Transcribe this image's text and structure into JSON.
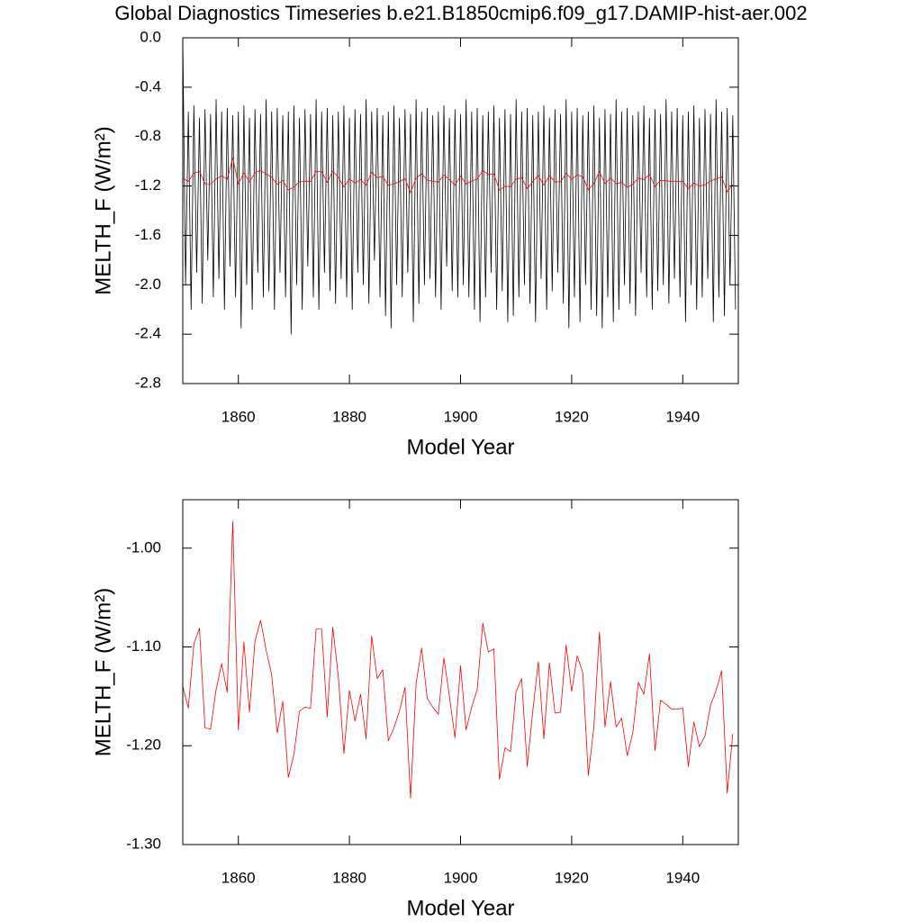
{
  "chart_data": [
    {
      "type": "line",
      "title": "Global Diagnostics Timeseries b.e21.B1850cmip6.f09_g17.DAMIP-hist-aer.002",
      "xlabel": "Model Year",
      "ylabel": "MELTH_F (W/m²)",
      "xlim": [
        1850,
        1950
      ],
      "xticks": [
        1860,
        1880,
        1900,
        1920,
        1940
      ],
      "ylim": [
        -2.8,
        0.0
      ],
      "yticks": [
        {
          "value": 0.0,
          "label": "0.0"
        },
        -0.4,
        -0.8,
        -1.2,
        -1.6,
        {
          "value": -2.0,
          "label": "-2.0"
        },
        -2.4,
        -2.8
      ],
      "series": [
        {
          "color": "#000000",
          "x": [
            1850,
            1850.5,
            1851,
            1851.5,
            1852,
            1852.5,
            1853,
            1853.5,
            1854,
            1854.5,
            1855,
            1855.5,
            1856,
            1856.5,
            1857,
            1857.5,
            1858,
            1858.5,
            1859,
            1859.5,
            1860,
            1860.5,
            1861,
            1861.5,
            1862,
            1862.5,
            1863,
            1863.5,
            1864,
            1864.5,
            1865,
            1865.5,
            1866,
            1866.5,
            1867,
            1867.5,
            1868,
            1868.5,
            1869,
            1869.5,
            1870,
            1870.5,
            1871,
            1871.5,
            1872,
            1872.5,
            1873,
            1873.5,
            1874,
            1874.5,
            1875,
            1875.5,
            1876,
            1876.5,
            1877,
            1877.5,
            1878,
            1878.5,
            1879,
            1879.5,
            1880,
            1880.5,
            1881,
            1881.5,
            1882,
            1882.5,
            1883,
            1883.5,
            1884,
            1884.5,
            1885,
            1885.5,
            1886,
            1886.5,
            1887,
            1887.5,
            1888,
            1888.5,
            1889,
            1889.5,
            1890,
            1890.5,
            1891,
            1891.5,
            1892,
            1892.5,
            1893,
            1893.5,
            1894,
            1894.5,
            1895,
            1895.5,
            1896,
            1896.5,
            1897,
            1897.5,
            1898,
            1898.5,
            1899,
            1899.5,
            1900,
            1900.5,
            1901,
            1901.5,
            1902,
            1902.5,
            1903,
            1903.5,
            1904,
            1904.5,
            1905,
            1905.5,
            1906,
            1906.5,
            1907,
            1907.5,
            1908,
            1908.5,
            1909,
            1909.5,
            1910,
            1910.5,
            1911,
            1911.5,
            1912,
            1912.5,
            1913,
            1913.5,
            1914,
            1914.5,
            1915,
            1915.5,
            1916,
            1916.5,
            1917,
            1917.5,
            1918,
            1918.5,
            1919,
            1919.5,
            1920,
            1920.5,
            1921,
            1921.5,
            1922,
            1922.5,
            1923,
            1923.5,
            1924,
            1924.5,
            1925,
            1925.5,
            1926,
            1926.5,
            1927,
            1927.5,
            1928,
            1928.5,
            1929,
            1929.5,
            1930,
            1930.5,
            1931,
            1931.5,
            1932,
            1932.5,
            1933,
            1933.5,
            1934,
            1934.5,
            1935,
            1935.5,
            1936,
            1936.5,
            1937,
            1937.5,
            1938,
            1938.5,
            1939,
            1939.5,
            1940,
            1940.5,
            1941,
            1941.5,
            1942,
            1942.5,
            1943,
            1943.5,
            1944,
            1944.5,
            1945,
            1945.5,
            1946,
            1946.5,
            1947,
            1947.5,
            1948,
            1948.5,
            1949,
            1949.5
          ],
          "values": [
            0.0,
            -2.0,
            -0.6,
            -2.2,
            -0.55,
            -1.9,
            -0.65,
            -2.15,
            -0.58,
            -1.8,
            -0.62,
            -2.1,
            -0.5,
            -1.95,
            -0.6,
            -2.2,
            -0.57,
            -1.85,
            -0.63,
            -2.1,
            -0.6,
            -2.35,
            -0.55,
            -2.0,
            -0.65,
            -2.2,
            -0.58,
            -1.9,
            -0.62,
            -2.1,
            -0.5,
            -2.05,
            -0.6,
            -2.2,
            -0.57,
            -1.9,
            -0.63,
            -2.1,
            -0.6,
            -2.4,
            -0.55,
            -2.0,
            -0.65,
            -2.2,
            -0.58,
            -1.85,
            -0.62,
            -2.1,
            -0.5,
            -2.2,
            -0.6,
            -1.9,
            -0.57,
            -2.05,
            -0.63,
            -2.15,
            -0.6,
            -1.95,
            -0.55,
            -2.1,
            -0.65,
            -2.2,
            -0.58,
            -1.9,
            -0.62,
            -2.0,
            -0.5,
            -2.15,
            -0.6,
            -1.8,
            -0.57,
            -2.1,
            -0.63,
            -2.25,
            -0.6,
            -2.35,
            -0.55,
            -2.0,
            -0.65,
            -2.1,
            -0.58,
            -1.9,
            -0.62,
            -2.3,
            -0.5,
            -2.15,
            -0.6,
            -2.0,
            -0.57,
            -1.95,
            -0.63,
            -2.1,
            -0.6,
            -2.2,
            -0.55,
            -1.85,
            -0.65,
            -2.05,
            -0.58,
            -2.1,
            -0.62,
            -2.0,
            -0.5,
            -2.1,
            -0.6,
            -2.2,
            -0.57,
            -2.3,
            -0.63,
            -2.1,
            -0.6,
            -1.9,
            -0.55,
            -2.2,
            -0.65,
            -2.05,
            -0.58,
            -2.3,
            -0.62,
            -2.25,
            -0.5,
            -2.1,
            -0.6,
            -2.0,
            -0.57,
            -2.15,
            -0.63,
            -2.3,
            -0.6,
            -1.95,
            -0.55,
            -2.2,
            -0.65,
            -2.05,
            -0.58,
            -1.9,
            -0.62,
            -2.15,
            -0.5,
            -2.35,
            -0.6,
            -2.1,
            -0.57,
            -2.3,
            -0.63,
            -2.0,
            -0.6,
            -2.2,
            -0.55,
            -2.25,
            -0.65,
            -2.35,
            -0.58,
            -2.1,
            -0.62,
            -2.3,
            -0.5,
            -2.2,
            -0.6,
            -2.0,
            -0.57,
            -2.15,
            -0.63,
            -2.25,
            -0.6,
            -1.9,
            -0.55,
            -2.1,
            -0.65,
            -2.2,
            -0.58,
            -2.05,
            -0.62,
            -2.0,
            -0.5,
            -2.15,
            -0.6,
            -1.95,
            -0.57,
            -2.1,
            -0.63,
            -2.3,
            -0.6,
            -2.0,
            -0.55,
            -2.2,
            -0.65,
            -2.1,
            -0.58,
            -1.95,
            -0.62,
            -2.3,
            -0.5,
            -2.1,
            -0.6,
            -2.25,
            -0.57,
            -2.0,
            -0.63,
            -2.2
          ]
        },
        {
          "color": "#ff0000",
          "x": [
            1850,
            1851,
            1852,
            1853,
            1854,
            1855,
            1856,
            1857,
            1858,
            1859,
            1860,
            1861,
            1862,
            1863,
            1864,
            1865,
            1866,
            1867,
            1868,
            1869,
            1870,
            1871,
            1872,
            1873,
            1874,
            1875,
            1876,
            1877,
            1878,
            1879,
            1880,
            1881,
            1882,
            1883,
            1884,
            1885,
            1886,
            1887,
            1888,
            1889,
            1890,
            1891,
            1892,
            1893,
            1894,
            1895,
            1896,
            1897,
            1898,
            1899,
            1900,
            1901,
            1902,
            1903,
            1904,
            1905,
            1906,
            1907,
            1908,
            1909,
            1910,
            1911,
            1912,
            1913,
            1914,
            1915,
            1916,
            1917,
            1918,
            1919,
            1920,
            1921,
            1922,
            1923,
            1924,
            1925,
            1926,
            1927,
            1928,
            1929,
            1930,
            1931,
            1932,
            1933,
            1934,
            1935,
            1936,
            1937,
            1938,
            1939,
            1940,
            1941,
            1942,
            1943,
            1944,
            1945,
            1946,
            1947,
            1948,
            1949
          ],
          "values": [
            -1.14,
            -1.162,
            -1.097,
            -1.081,
            -1.182,
            -1.183,
            -1.143,
            -1.117,
            -1.146,
            -0.973,
            -1.184,
            -1.095,
            -1.166,
            -1.094,
            -1.073,
            -1.103,
            -1.128,
            -1.187,
            -1.155,
            -1.232,
            -1.209,
            -1.165,
            -1.161,
            -1.162,
            -1.082,
            -1.082,
            -1.171,
            -1.08,
            -1.13,
            -1.208,
            -1.144,
            -1.175,
            -1.148,
            -1.193,
            -1.089,
            -1.132,
            -1.123,
            -1.195,
            -1.182,
            -1.165,
            -1.141,
            -1.253,
            -1.137,
            -1.101,
            -1.152,
            -1.161,
            -1.168,
            -1.111,
            -1.15,
            -1.192,
            -1.119,
            -1.184,
            -1.161,
            -1.143,
            -1.076,
            -1.105,
            -1.102,
            -1.234,
            -1.202,
            -1.206,
            -1.145,
            -1.132,
            -1.221,
            -1.165,
            -1.115,
            -1.193,
            -1.116,
            -1.167,
            -1.166,
            -1.098,
            -1.145,
            -1.109,
            -1.126,
            -1.23,
            -1.181,
            -1.085,
            -1.181,
            -1.135,
            -1.181,
            -1.172,
            -1.21,
            -1.187,
            -1.136,
            -1.148,
            -1.107,
            -1.205,
            -1.154,
            -1.158,
            -1.163,
            -1.163,
            -1.162,
            -1.221,
            -1.176,
            -1.201,
            -1.19,
            -1.159,
            -1.144,
            -1.124,
            -1.248,
            -1.188
          ]
        }
      ]
    },
    {
      "type": "line",
      "xlabel": "Model Year",
      "ylabel": "MELTH_F (W/m²)",
      "xlim": [
        1850,
        1950
      ],
      "xticks": [
        1860,
        1880,
        1900,
        1920,
        1940
      ],
      "ylim": [
        -1.3,
        -0.951
      ],
      "yticks": [
        {
          "value": -1.0,
          "label": "-1.00"
        },
        {
          "value": -1.1,
          "label": "-1.10"
        },
        {
          "value": -1.2,
          "label": "-1.20"
        },
        {
          "value": -1.3,
          "label": "-1.30"
        }
      ],
      "series": [
        {
          "color": "#ff0000",
          "x": [
            1850,
            1851,
            1852,
            1853,
            1854,
            1855,
            1856,
            1857,
            1858,
            1859,
            1860,
            1861,
            1862,
            1863,
            1864,
            1865,
            1866,
            1867,
            1868,
            1869,
            1870,
            1871,
            1872,
            1873,
            1874,
            1875,
            1876,
            1877,
            1878,
            1879,
            1880,
            1881,
            1882,
            1883,
            1884,
            1885,
            1886,
            1887,
            1888,
            1889,
            1890,
            1891,
            1892,
            1893,
            1894,
            1895,
            1896,
            1897,
            1898,
            1899,
            1900,
            1901,
            1902,
            1903,
            1904,
            1905,
            1906,
            1907,
            1908,
            1909,
            1910,
            1911,
            1912,
            1913,
            1914,
            1915,
            1916,
            1917,
            1918,
            1919,
            1920,
            1921,
            1922,
            1923,
            1924,
            1925,
            1926,
            1927,
            1928,
            1929,
            1930,
            1931,
            1932,
            1933,
            1934,
            1935,
            1936,
            1937,
            1938,
            1939,
            1940,
            1941,
            1942,
            1943,
            1944,
            1945,
            1946,
            1947,
            1948,
            1949
          ],
          "values": [
            -1.14,
            -1.162,
            -1.097,
            -1.081,
            -1.182,
            -1.183,
            -1.143,
            -1.117,
            -1.146,
            -0.973,
            -1.184,
            -1.095,
            -1.166,
            -1.094,
            -1.073,
            -1.103,
            -1.128,
            -1.187,
            -1.155,
            -1.232,
            -1.209,
            -1.165,
            -1.161,
            -1.162,
            -1.082,
            -1.082,
            -1.171,
            -1.08,
            -1.13,
            -1.208,
            -1.144,
            -1.175,
            -1.148,
            -1.193,
            -1.089,
            -1.132,
            -1.123,
            -1.195,
            -1.182,
            -1.165,
            -1.141,
            -1.253,
            -1.137,
            -1.101,
            -1.152,
            -1.161,
            -1.168,
            -1.111,
            -1.15,
            -1.192,
            -1.119,
            -1.184,
            -1.161,
            -1.143,
            -1.076,
            -1.105,
            -1.102,
            -1.234,
            -1.202,
            -1.206,
            -1.145,
            -1.132,
            -1.221,
            -1.165,
            -1.115,
            -1.193,
            -1.116,
            -1.167,
            -1.166,
            -1.098,
            -1.145,
            -1.109,
            -1.126,
            -1.23,
            -1.181,
            -1.085,
            -1.181,
            -1.135,
            -1.181,
            -1.172,
            -1.21,
            -1.187,
            -1.136,
            -1.148,
            -1.107,
            -1.205,
            -1.154,
            -1.158,
            -1.163,
            -1.163,
            -1.162,
            -1.221,
            -1.176,
            -1.201,
            -1.19,
            -1.159,
            -1.144,
            -1.124,
            -1.248,
            -1.188
          ]
        }
      ]
    }
  ]
}
